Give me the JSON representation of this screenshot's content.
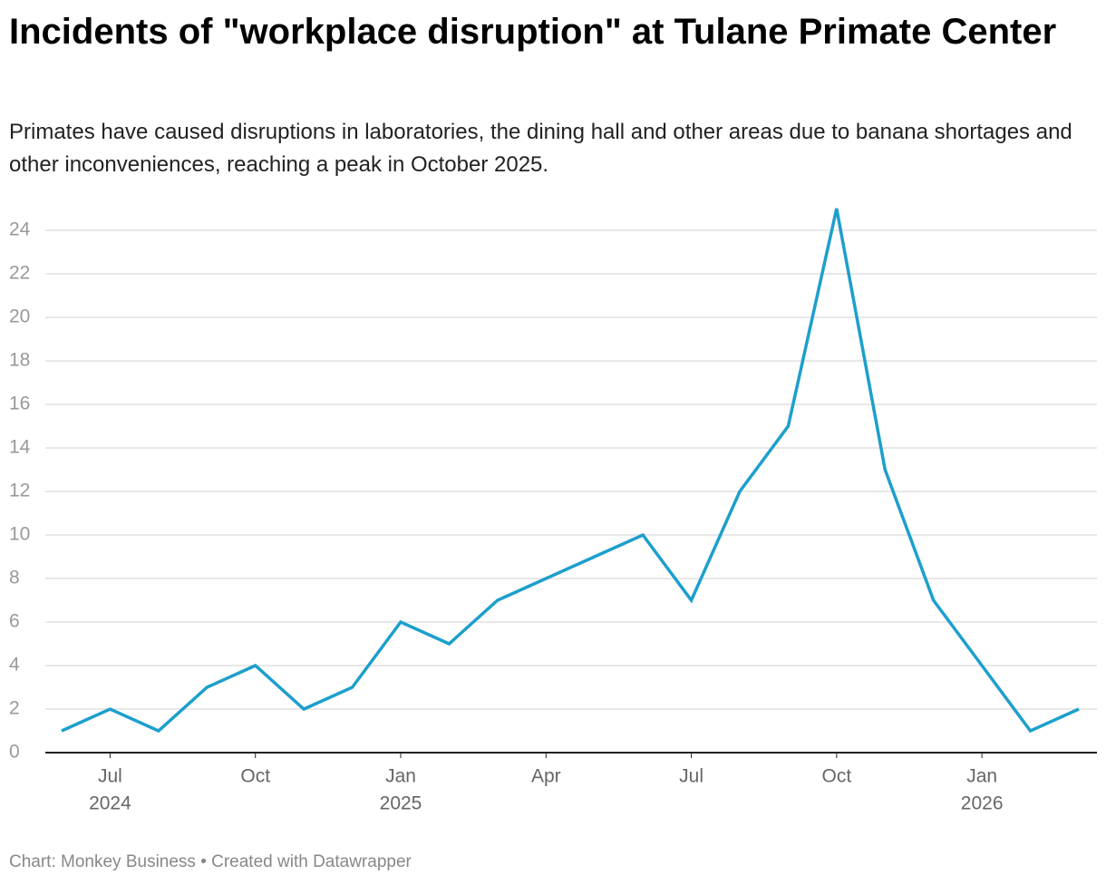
{
  "chart_data": {
    "type": "line",
    "title": "Incidents of \"workplace disruption\" at Tulane Primate Center",
    "subtitle": "Primates have caused disruptions in laboratories, the dining hall and other areas due to banana shortages and other inconveniences, reaching a peak in October 2025.",
    "source": "Chart: Monkey Business • Created with Datawrapper",
    "x": [
      "2024-06",
      "2024-07",
      "2024-08",
      "2024-09",
      "2024-10",
      "2024-11",
      "2024-12",
      "2025-01",
      "2025-02",
      "2025-03",
      "2025-04",
      "2025-05",
      "2025-06",
      "2025-07",
      "2025-08",
      "2025-09",
      "2025-10",
      "2025-11",
      "2025-12",
      "2026-01",
      "2026-02",
      "2026-03"
    ],
    "values": [
      1,
      2,
      1,
      3,
      4,
      2,
      3,
      6,
      5,
      7,
      8,
      9,
      10,
      7,
      12,
      15,
      25,
      13,
      7,
      4,
      1,
      2
    ],
    "color": "#1d9fcc",
    "xlim": [
      "2024-06",
      "2026-03"
    ],
    "xticks": [
      {
        "value": "2024-07",
        "label": "Jul",
        "year": "2024"
      },
      {
        "value": "2024-10",
        "label": "Oct"
      },
      {
        "value": "2025-01",
        "label": "Jan",
        "year": "2025"
      },
      {
        "value": "2025-04",
        "label": "Apr"
      },
      {
        "value": "2025-07",
        "label": "Jul"
      },
      {
        "value": "2025-10",
        "label": "Oct"
      },
      {
        "value": "2026-01",
        "label": "Jan",
        "year": "2026"
      }
    ],
    "ylim": [
      0,
      25
    ],
    "yticks": [
      0,
      2,
      4,
      6,
      8,
      10,
      12,
      14,
      16,
      18,
      20,
      22,
      24
    ],
    "grid": true
  }
}
